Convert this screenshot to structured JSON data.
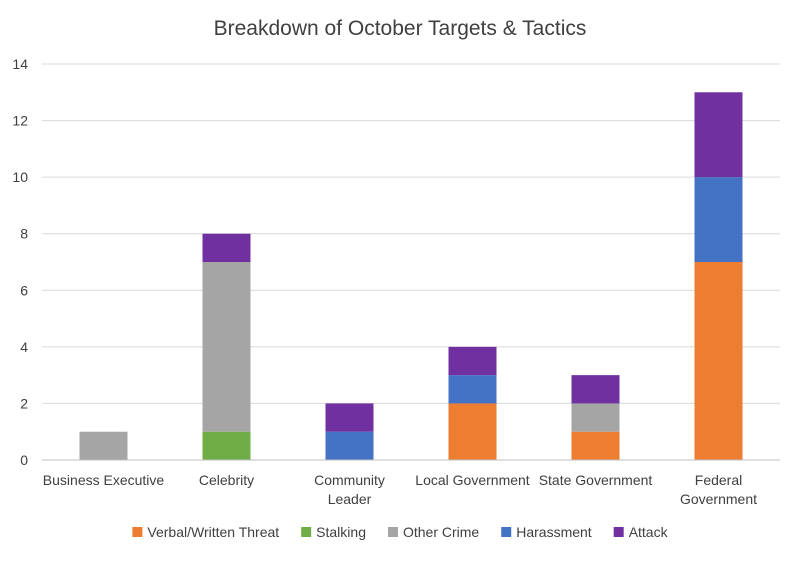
{
  "chart_data": {
    "type": "bar",
    "stacked": true,
    "title": "Breakdown of October Targets & Tactics",
    "xlabel": "",
    "ylabel": "",
    "ylim": [
      0,
      14
    ],
    "yticks": [
      0,
      2,
      4,
      6,
      8,
      10,
      12,
      14
    ],
    "grid": true,
    "legend_position": "bottom",
    "categories": [
      [
        "Business Executive"
      ],
      [
        "Celebrity"
      ],
      [
        "Community",
        "Leader"
      ],
      [
        "Local Government"
      ],
      [
        "State Government"
      ],
      [
        "Federal",
        "Government"
      ]
    ],
    "series": [
      {
        "name": "Verbal/Written Threat",
        "color": "#ed7d31",
        "values": [
          0,
          0,
          0,
          2,
          1,
          7
        ]
      },
      {
        "name": "Stalking",
        "color": "#70ad47",
        "values": [
          0,
          1,
          0,
          0,
          0,
          0
        ]
      },
      {
        "name": "Other Crime",
        "color": "#a5a5a5",
        "values": [
          1,
          6,
          0,
          0,
          1,
          0
        ]
      },
      {
        "name": "Harassment",
        "color": "#4472c4",
        "values": [
          0,
          0,
          1,
          1,
          0,
          3
        ]
      },
      {
        "name": "Attack",
        "color": "#7030a0",
        "values": [
          0,
          1,
          1,
          1,
          1,
          3
        ]
      }
    ]
  }
}
